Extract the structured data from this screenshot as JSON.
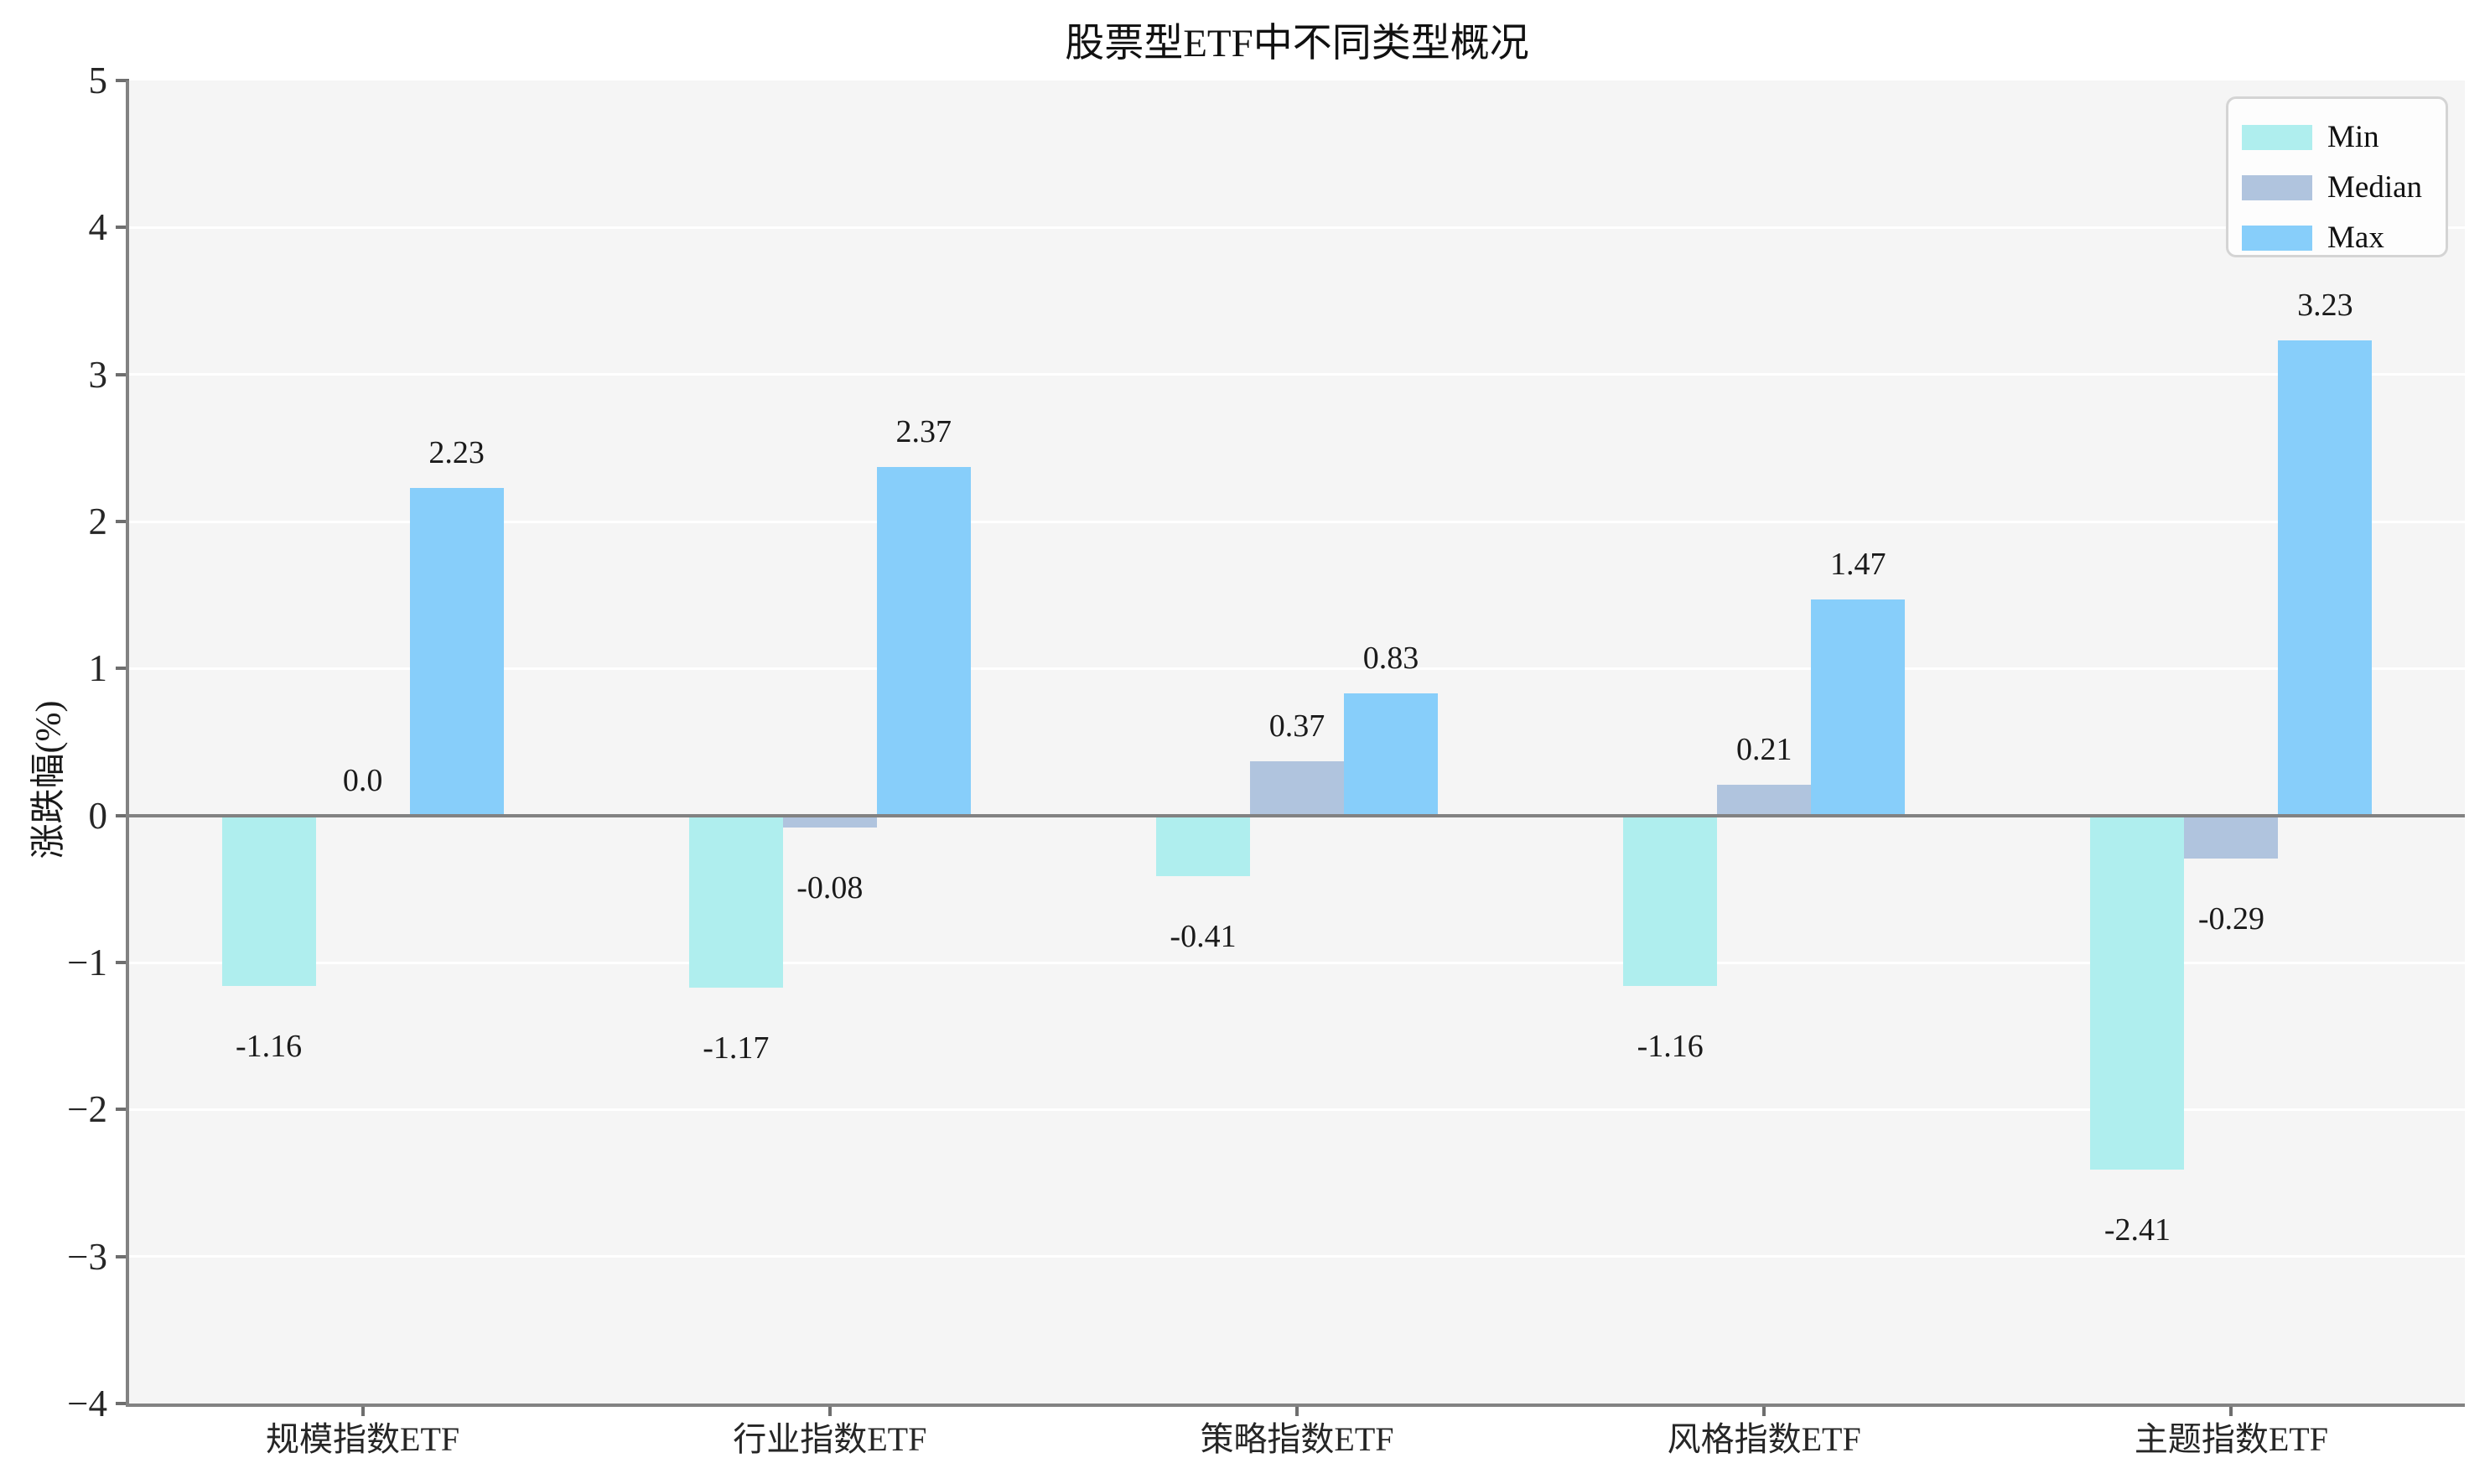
{
  "chart_data": {
    "type": "bar",
    "title": "股票型ETF中不同类型概况",
    "ylabel": "涨跌幅(%)",
    "xlabel": "",
    "categories": [
      "规模指数ETF",
      "行业指数ETF",
      "策略指数ETF",
      "风格指数ETF",
      "主题指数ETF"
    ],
    "series": [
      {
        "name": "Min",
        "color": "#AFEEEE",
        "values": [
          -1.16,
          -1.17,
          -0.41,
          -1.16,
          -2.41
        ],
        "labels": [
          "-1.16",
          "-1.17",
          "-0.41",
          "-1.16",
          "-2.41"
        ]
      },
      {
        "name": "Median",
        "color": "#B0C4DE",
        "values": [
          0.0,
          -0.08,
          0.37,
          0.21,
          -0.29
        ],
        "labels": [
          "0.0",
          "-0.08",
          "0.37",
          "0.21",
          "-0.29"
        ]
      },
      {
        "name": "Max",
        "color": "#87CEFA",
        "values": [
          2.23,
          2.37,
          0.83,
          1.47,
          3.23
        ],
        "labels": [
          "2.23",
          "2.37",
          "0.83",
          "1.47",
          "3.23"
        ]
      }
    ],
    "ylim": [
      -4,
      5
    ],
    "yticks": [
      {
        "v": 5,
        "label": "5"
      },
      {
        "v": 4,
        "label": "4"
      },
      {
        "v": 3,
        "label": "3"
      },
      {
        "v": 2,
        "label": "2"
      },
      {
        "v": 1,
        "label": "1"
      },
      {
        "v": 0,
        "label": "0"
      },
      {
        "v": -1,
        "label": "−1"
      },
      {
        "v": -2,
        "label": "−2"
      },
      {
        "v": -3,
        "label": "−3"
      },
      {
        "v": -4,
        "label": "−4"
      }
    ],
    "grid": "horizontal white lines on light gray panel",
    "legend_position": "upper right",
    "colors": {
      "plot_bg": "#F5F5F5",
      "grid": "#FFFFFF",
      "axis": "#828282",
      "zero_line": "#828282",
      "text": "#1A1A1A",
      "legend_bg": "#FDFDFD",
      "legend_border": "#D4D4D4"
    }
  }
}
